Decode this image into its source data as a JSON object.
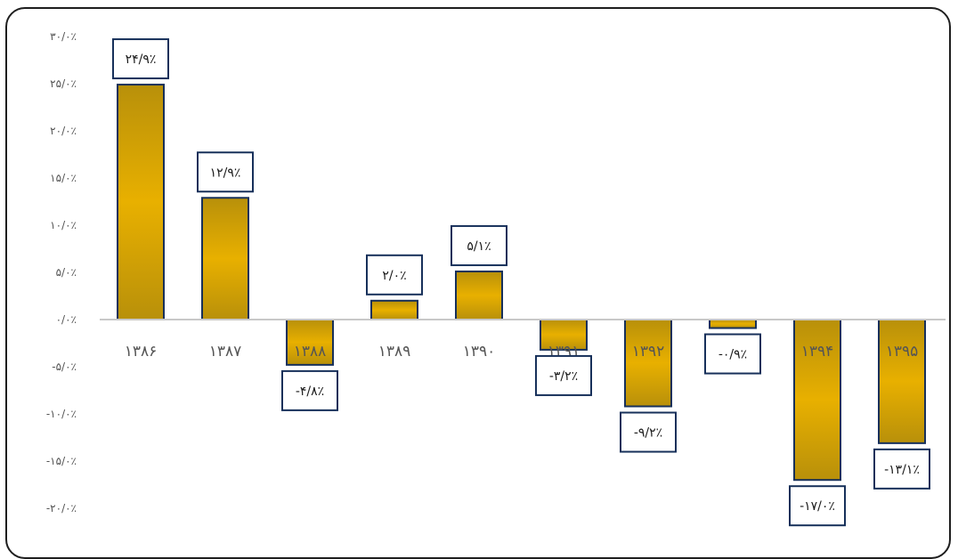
{
  "colors": {
    "bar_top": "#b8900a",
    "bar_mid": "#e8b000",
    "bar_bottom": "#b8900a",
    "bar_stroke": "#17305a",
    "label_box": "#17305a",
    "axis": "#c8c8c8"
  },
  "chart_data": {
    "type": "bar",
    "categories": [
      "۱۳۸۶",
      "۱۳۸۷",
      "۱۳۸۸",
      "۱۳۸۹",
      "۱۳۹۰",
      "۱۳۹۱",
      "۱۳۹۲",
      "۱۳۹۳",
      "۱۳۹۴",
      "۱۳۹۵"
    ],
    "values": [
      24.9,
      12.9,
      -4.8,
      2.0,
      5.1,
      -3.2,
      -9.2,
      -0.9,
      -17.0,
      -13.1
    ],
    "data_labels": [
      "۲۴/۹٪",
      "۱۲/۹٪",
      "-۴/۸٪",
      "۲/۰٪",
      "۵/۱٪",
      "-۳/۲٪",
      "-۹/۲٪",
      "-۰/۹٪",
      "-۱۷/۰٪",
      "-۱۳/۱٪"
    ],
    "ylim": [
      -20,
      30
    ],
    "yticks": [
      30,
      25,
      20,
      15,
      10,
      5,
      0,
      -5,
      -10,
      -15,
      -20
    ],
    "ytick_labels": [
      "۳۰/۰٪",
      "۲۵/۰٪",
      "۲۰/۰٪",
      "۱۵/۰٪",
      "۱۰/۰٪",
      "۵/۰٪",
      "۰/۰٪",
      "-۵/۰٪",
      "-۱۰/۰٪",
      "-۱۵/۰٪",
      "-۲۰/۰٪"
    ],
    "grid": false,
    "title": "",
    "xlabel": "",
    "ylabel": ""
  }
}
